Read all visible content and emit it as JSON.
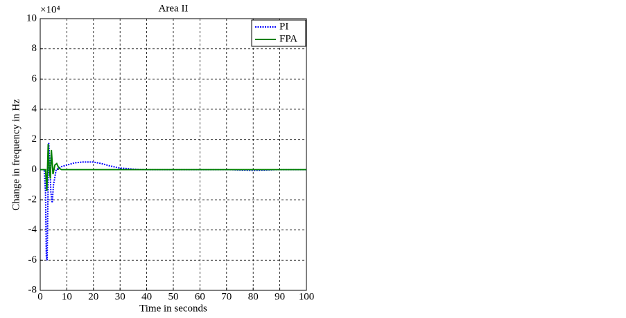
{
  "chart_data": {
    "type": "line",
    "title": "Area II",
    "xlabel": "Time in seconds",
    "ylabel": "Change in frequency in Hz",
    "y_multiplier_label": "×10⁴",
    "xlim": [
      0,
      100
    ],
    "xticks": [
      0,
      10,
      20,
      30,
      40,
      50,
      60,
      70,
      80,
      90,
      100
    ],
    "ylim": [
      -8,
      10
    ],
    "yticks": [
      -8,
      -6,
      -4,
      -2,
      0,
      2,
      4,
      6,
      8,
      10
    ],
    "grid": true,
    "legend": "upper right",
    "series": [
      {
        "name": "PI",
        "color": "#0000ff",
        "style": "dotted",
        "x": [
          0,
          1.5,
          2,
          2.3,
          2.6,
          2.9,
          3.2,
          3.6,
          4,
          4.5,
          5,
          6,
          8,
          10,
          13,
          16,
          20,
          23,
          26,
          30,
          35,
          40,
          50,
          60,
          70,
          80,
          90,
          100
        ],
        "values": [
          0,
          0,
          -1.5,
          -5.8,
          -6,
          -2,
          1.8,
          0.5,
          -1.5,
          -2.2,
          -1,
          0,
          0.2,
          0.3,
          0.45,
          0.5,
          0.5,
          0.4,
          0.25,
          0.1,
          0.03,
          0,
          0,
          0,
          0,
          -0.05,
          0,
          0
        ]
      },
      {
        "name": "FPA",
        "color": "#008000",
        "style": "solid",
        "x": [
          0,
          2,
          2.5,
          3,
          3.4,
          3.8,
          4.2,
          4.8,
          5.5,
          6.2,
          7,
          8,
          10,
          100
        ],
        "values": [
          0,
          0,
          -1.4,
          1.7,
          0,
          -0.6,
          1.3,
          -0.3,
          0.3,
          0.4,
          0.1,
          0,
          0,
          0
        ]
      }
    ]
  }
}
